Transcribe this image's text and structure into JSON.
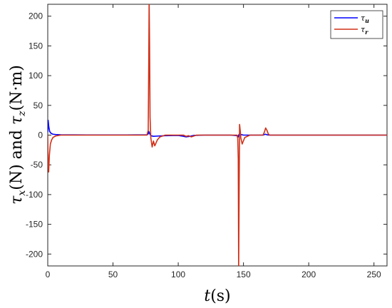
{
  "chart_data": {
    "type": "line",
    "xlabel": "t(s)",
    "ylabel": "τx(N) and τz(N·m)",
    "xlim": [
      0,
      260
    ],
    "ylim": [
      -220,
      220
    ],
    "xticks": [
      0,
      50,
      100,
      150,
      200,
      250
    ],
    "yticks": [
      -200,
      -150,
      -100,
      -50,
      0,
      50,
      100,
      150,
      200
    ],
    "grid": false,
    "legend_position": "top-right",
    "series": [
      {
        "name": "τu",
        "color": "#0000ff",
        "x": [
          0,
          0.3,
          0.8,
          1.5,
          2.5,
          4,
          6,
          10,
          30,
          60,
          76,
          77,
          77.5,
          78,
          79,
          81,
          85,
          90,
          100,
          104,
          106,
          109,
          112,
          120,
          140,
          145.5,
          146,
          146.5,
          147,
          148,
          150,
          165,
          166,
          167,
          168,
          170,
          200,
          230,
          260
        ],
        "y": [
          5,
          25,
          14,
          6,
          3,
          1.5,
          1,
          0.5,
          0.3,
          0.3,
          0.5,
          2,
          6,
          3,
          -1,
          -2,
          -1.5,
          -1,
          -0.5,
          -2,
          -3,
          -2,
          -0.5,
          0,
          0,
          -1,
          -3,
          1,
          2,
          1,
          0,
          0,
          1,
          1.5,
          0.5,
          0,
          0,
          0,
          0
        ]
      },
      {
        "name": "τr",
        "color": "#d03018",
        "x": [
          0,
          0.3,
          0.7,
          1.2,
          2,
          3,
          4,
          6,
          10,
          30,
          60,
          76,
          77,
          77.4,
          77.7,
          78,
          78.4,
          79,
          80,
          81,
          82,
          84,
          86,
          90,
          100,
          104,
          106,
          108,
          110,
          114,
          120,
          140,
          145,
          145.6,
          146,
          146.3,
          146.6,
          147,
          147.5,
          148,
          149,
          151,
          155,
          165,
          166,
          167,
          168,
          169,
          170,
          200,
          260
        ],
        "y": [
          0,
          -48,
          -62,
          -35,
          -15,
          -8,
          -4,
          -1.5,
          0,
          0,
          0,
          0,
          8,
          120,
          228,
          160,
          30,
          -5,
          -20,
          -10,
          -18,
          -8,
          -3,
          0,
          0,
          0,
          -2,
          -1,
          -3,
          0,
          0,
          0,
          0,
          -5,
          -40,
          -225,
          -120,
          18,
          8,
          -5,
          -15,
          -4,
          0,
          0,
          5,
          12,
          8,
          2,
          0,
          0,
          0
        ]
      }
    ]
  }
}
